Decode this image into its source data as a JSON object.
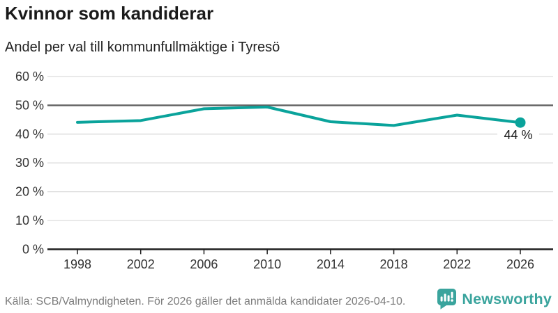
{
  "header": {
    "title": "Kvinnor som kandiderar",
    "subtitle": "Andel per val till kommunfullmäktige i Tyresö"
  },
  "chart_data": {
    "type": "line",
    "title": "Kvinnor som kandiderar",
    "subtitle": "Andel per val till kommunfullmäktige i Tyresö",
    "x": [
      1998,
      2002,
      2006,
      2010,
      2014,
      2018,
      2022,
      2026
    ],
    "xtick_labels": [
      "1998",
      "2002",
      "2006",
      "2010",
      "2014",
      "2018",
      "2022",
      "2026"
    ],
    "values": [
      44.1,
      44.7,
      48.8,
      49.4,
      44.3,
      43,
      46.6,
      44
    ],
    "unit": "%",
    "ylim": [
      0,
      60
    ],
    "ytick_step": 10,
    "ytick_format": "{v} %",
    "last_point_label": "44 %",
    "reference_line": 50,
    "grid": true,
    "legend": "none",
    "line_color": "#0aa39b",
    "marker_color": "#0aa39b",
    "grid_color": "#dcdcdc",
    "reference_line_color": "#606060",
    "axis_color": "#1f1f1f",
    "tick_label_color": "#333333",
    "point_label_color": "#1a1a1a"
  },
  "footer": {
    "source": "Källa: SCB/Valmyndigheten. För 2026 gäller det anmälda kandidater 2026-04-10.",
    "brand": "Newsworthy",
    "brand_color": "#3aa49d",
    "brand_icon": "newsworthy-speech-bubble-chart-icon"
  }
}
